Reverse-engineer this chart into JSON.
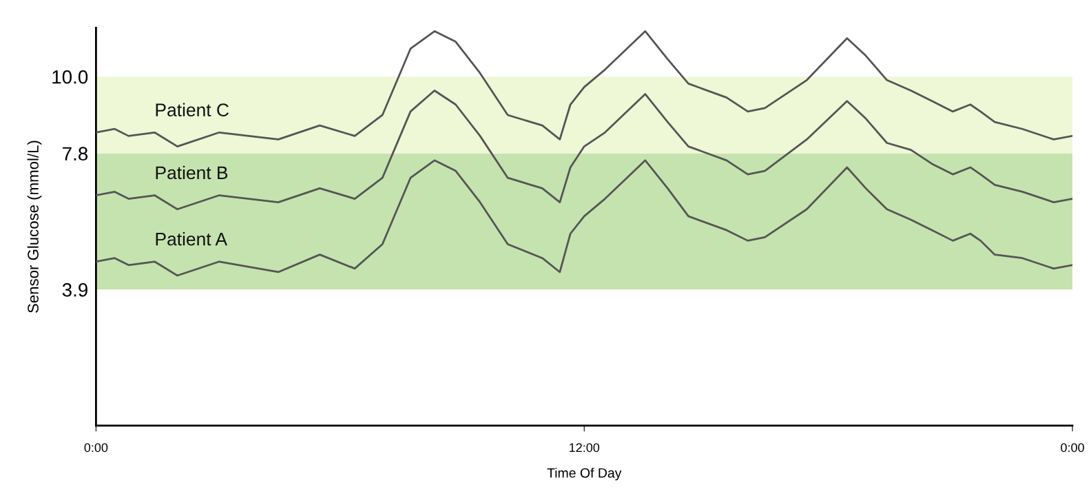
{
  "chart_data": {
    "type": "line",
    "xlabel": "Time Of Day",
    "ylabel": "Sensor Glucose (mmol/L)",
    "x": [
      0,
      0.46,
      0.8,
      1.44,
      2.0,
      3.03,
      4.48,
      5.5,
      6.36,
      7.04,
      7.73,
      8.32,
      8.84,
      9.44,
      10.12,
      10.97,
      11.4,
      11.66,
      12.0,
      12.51,
      13.5,
      14.05,
      14.56,
      15.5,
      16.02,
      16.44,
      17.47,
      18.46,
      18.92,
      19.44,
      20.03,
      20.55,
      21.06,
      21.49,
      21.74,
      22.09,
      22.77,
      23.54,
      24
    ],
    "series": [
      {
        "name": "Patient C",
        "color": "#555555",
        "values": [
          8.4,
          8.5,
          8.3,
          8.4,
          8.0,
          8.4,
          8.2,
          8.6,
          8.3,
          8.9,
          10.8,
          11.3,
          11.0,
          10.1,
          8.9,
          8.6,
          8.2,
          9.2,
          9.7,
          10.2,
          11.3,
          10.5,
          9.8,
          9.4,
          9.0,
          9.1,
          9.9,
          11.1,
          10.6,
          9.9,
          9.6,
          9.3,
          9.0,
          9.2,
          9.0,
          8.7,
          8.5,
          8.2,
          8.3
        ]
      },
      {
        "name": "Patient B",
        "color": "#555555",
        "values": [
          6.6,
          6.7,
          6.5,
          6.6,
          6.2,
          6.6,
          6.4,
          6.8,
          6.5,
          7.1,
          9.0,
          9.6,
          9.2,
          8.3,
          7.1,
          6.8,
          6.4,
          7.4,
          8.0,
          8.4,
          9.5,
          8.7,
          8.0,
          7.6,
          7.2,
          7.3,
          8.2,
          9.3,
          8.8,
          8.1,
          7.9,
          7.5,
          7.2,
          7.4,
          7.2,
          6.9,
          6.7,
          6.4,
          6.5
        ]
      },
      {
        "name": "Patient A",
        "color": "#555555",
        "values": [
          4.7,
          4.8,
          4.6,
          4.7,
          4.3,
          4.7,
          4.4,
          4.9,
          4.5,
          5.2,
          7.1,
          7.6,
          7.3,
          6.4,
          5.2,
          4.8,
          4.4,
          5.5,
          6.0,
          6.5,
          7.6,
          6.8,
          6.0,
          5.6,
          5.3,
          5.4,
          6.2,
          7.4,
          6.8,
          6.2,
          5.9,
          5.6,
          5.3,
          5.5,
          5.3,
          4.9,
          4.8,
          4.5,
          4.6
        ]
      }
    ],
    "xlim": [
      0,
      24
    ],
    "xticks": [
      {
        "value": 0,
        "label": "0:00"
      },
      {
        "value": 12,
        "label": "12:00"
      },
      {
        "value": 24,
        "label": "0:00"
      }
    ],
    "ylim": [
      0,
      11.4
    ],
    "yticks": [
      3.9,
      7.8,
      {
        "value": 10,
        "label": "10.0"
      }
    ],
    "bands": [
      {
        "axis": "y",
        "from": 3.9,
        "to": 7.8,
        "color": "#c5e3ae"
      },
      {
        "axis": "y",
        "from": 7.8,
        "to": 10,
        "color": "#eef7d6"
      }
    ],
    "grid": false,
    "legend": false,
    "marker": "none",
    "line_style": "solid"
  }
}
